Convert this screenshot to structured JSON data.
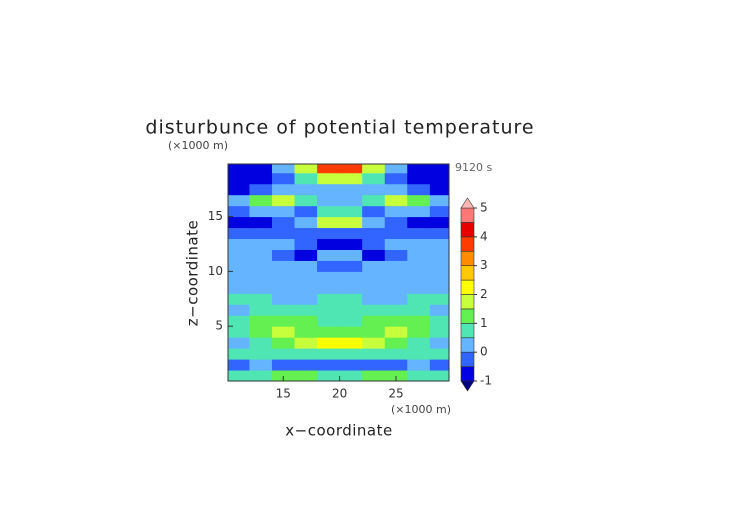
{
  "chart_data": {
    "type": "contour",
    "title": "disturbunce of potential temperature",
    "x_unit": "(×1000 m)",
    "y_unit": "(×1000 m)",
    "time_label": "9120 s",
    "xlabel": "x−coordinate",
    "ylabel": "z−coordinate",
    "xlim": [
      10.1,
      29.7
    ],
    "ylim": [
      0,
      19.8
    ],
    "xticks": [
      15,
      20,
      25
    ],
    "yticks": [
      5,
      10,
      15
    ],
    "x": [
      11,
      13,
      15,
      17,
      19,
      21,
      23,
      25,
      27,
      29
    ],
    "y": [
      0.5,
      1.5,
      2.5,
      3.5,
      4.5,
      5.5,
      6.5,
      7.5,
      8.5,
      9.5,
      10.5,
      11.5,
      12.5,
      13.5,
      14.5,
      15.5,
      16.5,
      17.5,
      18.5,
      19.5
    ],
    "z": [
      [
        0.5,
        0.8,
        1.0,
        1.1,
        0.9,
        0.9,
        1.1,
        1.0,
        0.8,
        0.5
      ],
      [
        -0.2,
        0,
        -0.3,
        -0.1,
        -0.4,
        -0.4,
        -0.1,
        -0.3,
        0,
        -0.2
      ],
      [
        0.5,
        0.6,
        0.8,
        0.9,
        0.9,
        0.9,
        0.9,
        0.8,
        0.6,
        0.5
      ],
      [
        0.3,
        0.8,
        1.3,
        1.8,
        2.2,
        2.2,
        1.8,
        1.3,
        0.8,
        0.3
      ],
      [
        0.8,
        1.3,
        1.5,
        1.3,
        1.2,
        1.2,
        1.3,
        1.5,
        1.3,
        0.8
      ],
      [
        0.6,
        1,
        1.2,
        1,
        0.8,
        0.8,
        1,
        1.2,
        1,
        0.6
      ],
      [
        0.4,
        0.6,
        0.8,
        0.8,
        0.7,
        0.7,
        0.8,
        0.8,
        0.6,
        0.4
      ],
      [
        0.6,
        0.5,
        0.3,
        0.3,
        0.6,
        0.6,
        0.3,
        0.3,
        0.5,
        0.6
      ],
      [
        0.2,
        0.2,
        0.3,
        0.2,
        0.4,
        0.4,
        0.2,
        0.3,
        0.2,
        0.2
      ],
      [
        0,
        0,
        0,
        0,
        0.2,
        0.2,
        0,
        0,
        0,
        0
      ],
      [
        0,
        0,
        0,
        0.2,
        -0.2,
        -0.2,
        0.2,
        0,
        0,
        0
      ],
      [
        0,
        0,
        -0.3,
        -0.8,
        0,
        0,
        -0.8,
        -0.3,
        0,
        0
      ],
      [
        0,
        0.1,
        0,
        -0.3,
        -0.6,
        -0.6,
        -0.3,
        0,
        0.1,
        0
      ],
      [
        -0.5,
        -0.3,
        -0.2,
        -0.2,
        -0.3,
        -0.3,
        -0.2,
        -0.2,
        -0.3,
        -0.5
      ],
      [
        -0.8,
        -0.9,
        -0.5,
        0,
        1.5,
        1.5,
        0,
        -0.5,
        -0.9,
        -0.8
      ],
      [
        -0.3,
        0,
        0.3,
        -0.2,
        0.8,
        0.8,
        -0.2,
        0.3,
        0,
        -0.3
      ],
      [
        0.3,
        1.2,
        1.5,
        0.5,
        0,
        0,
        0.5,
        1.5,
        1.2,
        0.3
      ],
      [
        -0.6,
        -0.3,
        0,
        0,
        0.2,
        0.2,
        0,
        0,
        -0.3,
        -0.6
      ],
      [
        -1,
        -0.7,
        -0.2,
        0.5,
        1.5,
        1.5,
        0.5,
        -0.2,
        -0.7,
        -1
      ],
      [
        -0.8,
        -0.6,
        0,
        1.5,
        3.5,
        3.5,
        1.5,
        0,
        -0.6,
        -0.8
      ]
    ],
    "levels": [
      -1,
      -0.5,
      0,
      0.5,
      1,
      1.5,
      2,
      2.5,
      3,
      3.5,
      4,
      4.5,
      5
    ],
    "colors": [
      "#000080",
      "#0000e0",
      "#3264ff",
      "#64b4ff",
      "#50e6b4",
      "#64f050",
      "#c8ff3c",
      "#ffff00",
      "#ffc800",
      "#ff8c00",
      "#ff3c00",
      "#e60000",
      "#ff7878",
      "#ffb4b4"
    ],
    "colorbar_ticks": [
      -1,
      0,
      1,
      2,
      3,
      4,
      5
    ]
  }
}
